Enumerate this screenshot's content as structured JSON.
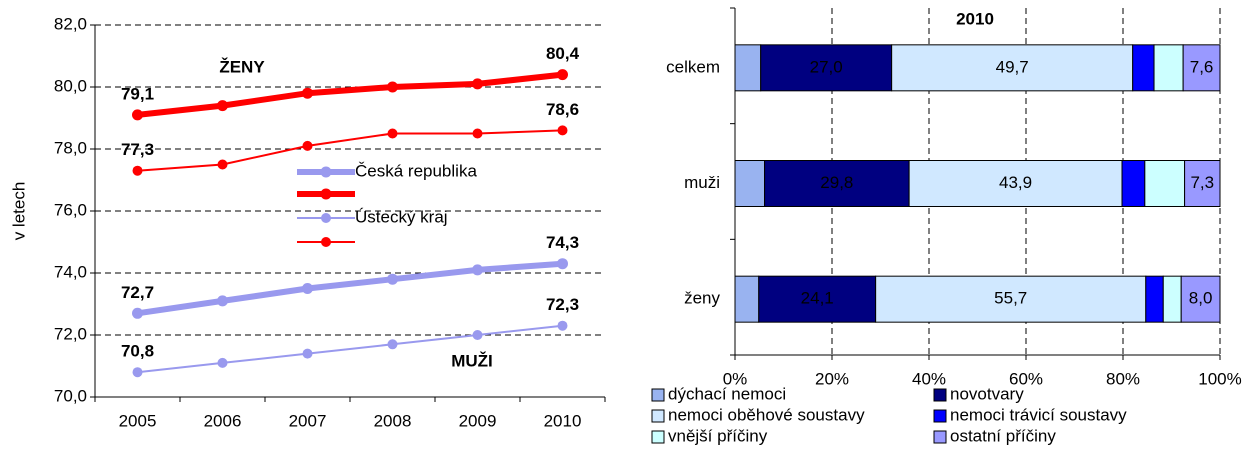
{
  "chart_data": [
    {
      "type": "line",
      "y_label": "v letech",
      "annotations": [
        "ŽENY",
        "MUŽI"
      ],
      "categories": [
        "2005",
        "2006",
        "2007",
        "2008",
        "2009",
        "2010"
      ],
      "ylim": [
        70,
        82
      ],
      "yticks": [
        {
          "value": 70,
          "label": "70,0"
        },
        {
          "value": 72,
          "label": "72,0"
        },
        {
          "value": 74,
          "label": "74,0"
        },
        {
          "value": 76,
          "label": "76,0"
        },
        {
          "value": 78,
          "label": "78,0"
        },
        {
          "value": 80,
          "label": "80,0"
        },
        {
          "value": 82,
          "label": "82,0"
        }
      ],
      "grid": true,
      "series": [
        {
          "name": "Česká republika",
          "color": "#9999ee",
          "values": [
            72.7,
            73.1,
            73.5,
            73.8,
            74.1,
            74.3
          ],
          "value_labels": [
            "72,7",
            null,
            null,
            null,
            null,
            "74,3"
          ]
        },
        {
          "color": "#ff0000",
          "values": [
            79.1,
            79.4,
            79.8,
            80.0,
            80.1,
            80.4
          ],
          "value_labels": [
            "79,1",
            null,
            null,
            null,
            null,
            "80,4"
          ]
        },
        {
          "name": "Ústecký kraj",
          "color": "#9999ee",
          "values": [
            70.8,
            71.1,
            71.4,
            71.7,
            72.0,
            72.3
          ],
          "value_labels": [
            "70,8",
            null,
            null,
            null,
            null,
            "72,3"
          ]
        },
        {
          "color": "#ff0000",
          "values": [
            77.3,
            77.5,
            78.1,
            78.5,
            78.5,
            78.6
          ],
          "value_labels": [
            "77,3",
            null,
            null,
            null,
            null,
            "78,6"
          ]
        }
      ]
    },
    {
      "type": "stacked-bar-horizontal",
      "title": "2010",
      "categories": [
        "celkem",
        "muži",
        "ženy"
      ],
      "xlim": [
        0,
        100
      ],
      "xticks": [
        {
          "value": 0,
          "label": "0%"
        },
        {
          "value": 20,
          "label": "20%"
        },
        {
          "value": 40,
          "label": "40%"
        },
        {
          "value": 60,
          "label": "60%"
        },
        {
          "value": 80,
          "label": "80%"
        },
        {
          "value": 100,
          "label": "100%"
        }
      ],
      "grid": true,
      "series": [
        {
          "name": "dýchací nemoci",
          "color": "#99b3f0",
          "values": [
            5.3,
            6.1,
            4.9
          ]
        },
        {
          "name": "novotvary",
          "color": "#000080",
          "values": [
            27.0,
            29.8,
            24.1
          ],
          "value_labels": [
            "27,0",
            "29,8",
            "24,1"
          ]
        },
        {
          "name": "nemoci oběhové soustavy",
          "color": "#d0e8ff",
          "values": [
            49.7,
            43.9,
            55.7
          ],
          "value_labels": [
            "49,7",
            "43,9",
            "55,7"
          ]
        },
        {
          "name": "nemoci trávicí soustavy",
          "color": "#0000ff",
          "values": [
            4.4,
            4.7,
            3.6
          ]
        },
        {
          "name": "vnější příčiny",
          "color": "#ccffff",
          "values": [
            6.0,
            8.2,
            3.7
          ]
        },
        {
          "name": "ostatní příčiny",
          "color": "#9999ff",
          "values": [
            7.6,
            7.3,
            8.0
          ],
          "value_labels": [
            "7,6",
            "7,3",
            "8,0"
          ]
        }
      ]
    }
  ]
}
